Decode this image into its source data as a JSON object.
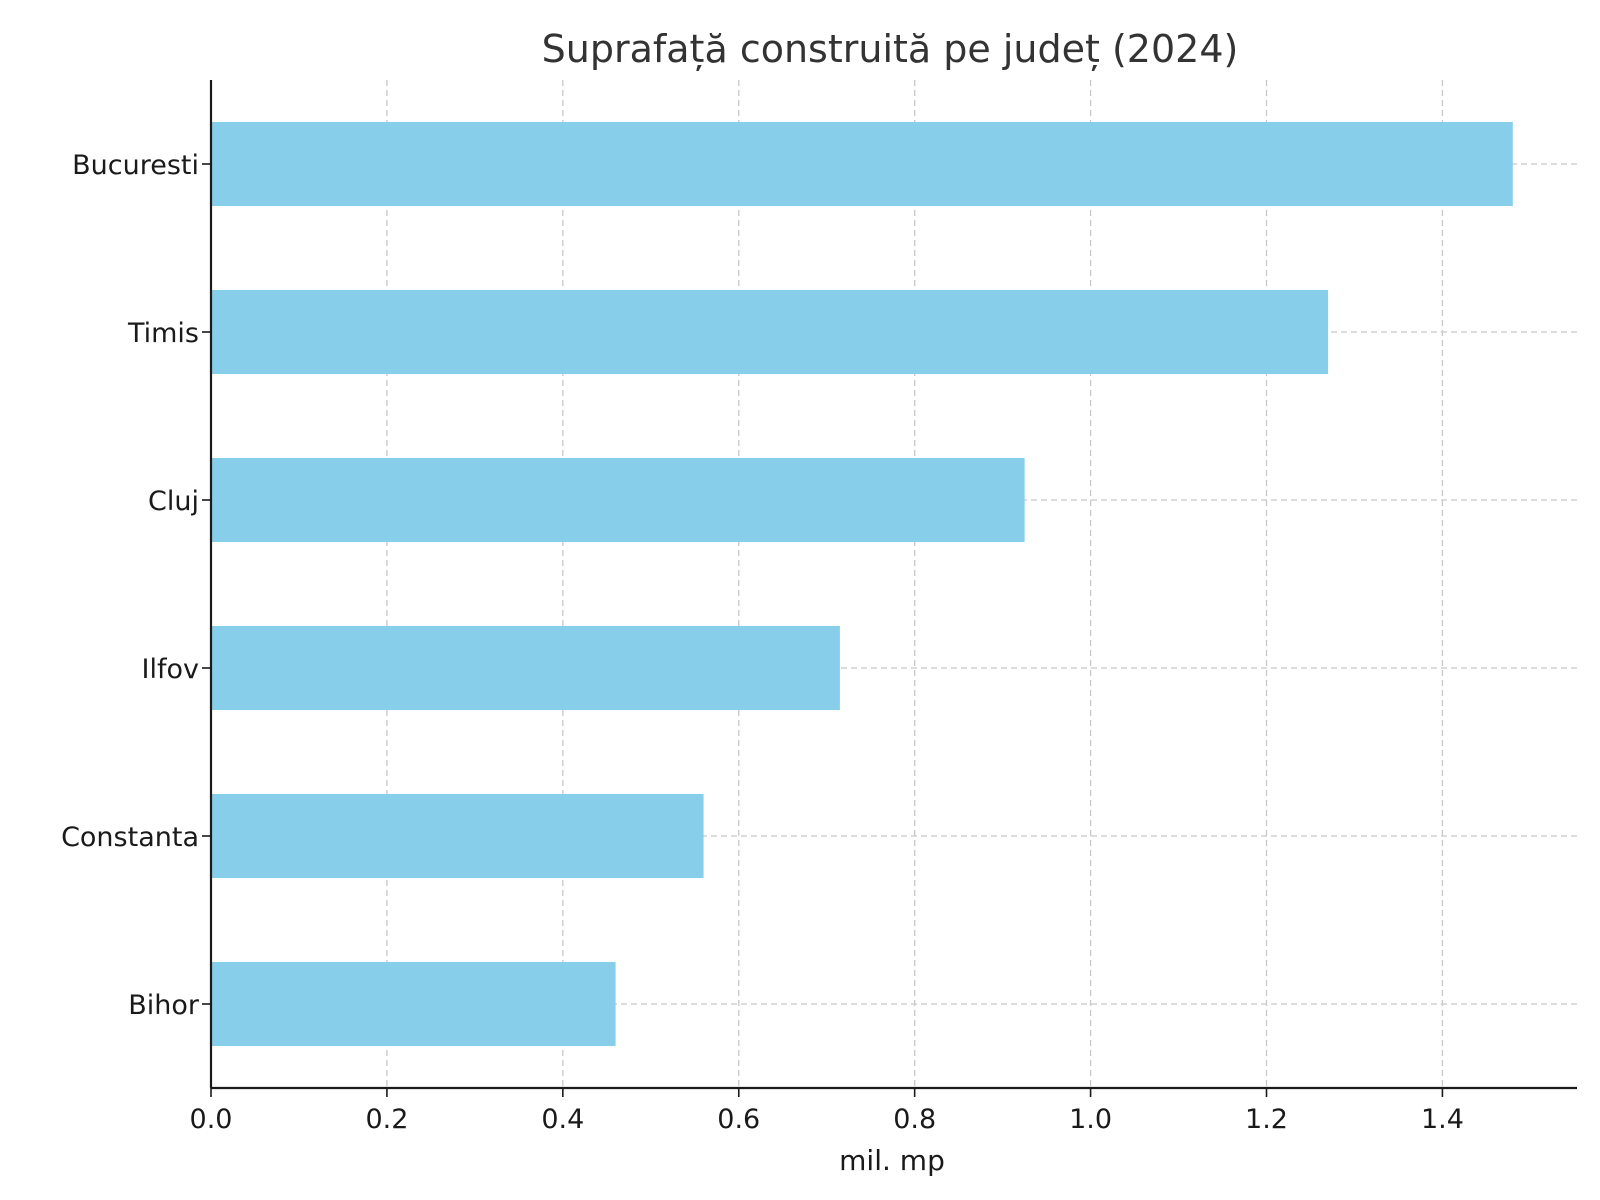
{
  "chart_data": {
    "type": "bar",
    "orientation": "horizontal",
    "title": "Suprafață construită pe județ (2024)",
    "xlabel": "mil. mp",
    "ylabel": "",
    "categories": [
      "Bucuresti",
      "Timis",
      "Cluj",
      "Ilfov",
      "Constanta",
      "Bihor"
    ],
    "values": [
      1.48,
      1.27,
      0.925,
      0.715,
      0.56,
      0.46
    ],
    "xlim": [
      0,
      1.553
    ],
    "xticks": [
      "0.0",
      "0.2",
      "0.4",
      "0.6",
      "0.8",
      "1.0",
      "1.2",
      "1.4"
    ],
    "grid": true,
    "bar_color": "#87CEEB"
  }
}
